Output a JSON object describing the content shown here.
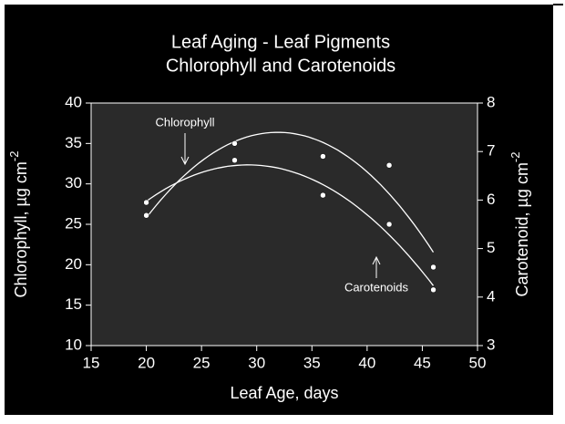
{
  "chart_data": {
    "type": "scatter",
    "title": [
      "Leaf Aging - Leaf Pigments",
      "Chlorophyll and Carotenoids"
    ],
    "xlabel": "Leaf Age, days",
    "ylabel": {
      "text": "Chlorophyll, µg cm",
      "superscript": "-2"
    },
    "y2label": {
      "text": "Carotenoid, µg cm",
      "superscript": "-2"
    },
    "xlim": [
      15,
      50
    ],
    "xticks": [
      15,
      20,
      25,
      30,
      35,
      40,
      45,
      50
    ],
    "ylim": [
      10,
      40
    ],
    "yticks": [
      10,
      15,
      20,
      25,
      30,
      35,
      40
    ],
    "y2lim": [
      3,
      8
    ],
    "y2ticks": [
      3,
      4,
      5,
      6,
      7,
      8
    ],
    "series": [
      {
        "name": "Chlorophyll",
        "color": "#ffffff",
        "x": [
          20,
          28,
          36,
          42,
          46
        ],
        "values": [
          26.1,
          35.0,
          33.4,
          32.3,
          19.7
        ]
      },
      {
        "name": "Carotenoids",
        "color": "#ffffff",
        "axis": "y2",
        "x": [
          20,
          28,
          36,
          42,
          46
        ],
        "values": [
          5.95,
          6.82,
          6.1,
          5.5,
          4.15
        ]
      }
    ],
    "fit": "quadratic"
  }
}
